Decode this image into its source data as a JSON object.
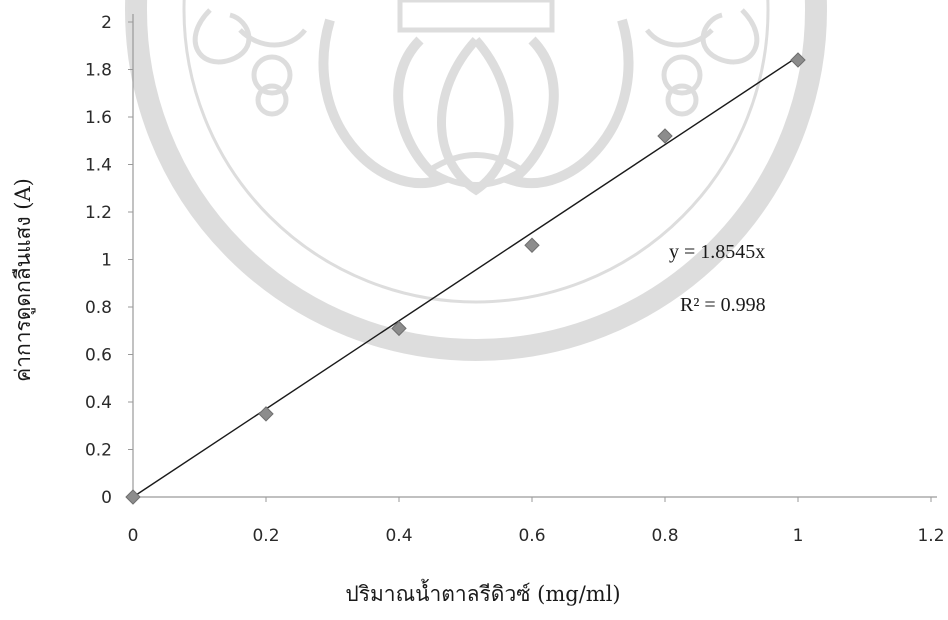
{
  "chart_data": {
    "type": "scatter",
    "title": "",
    "xlabel": "ปริมาณน้ำตาลรีดิวซ์ (mg/ml)",
    "ylabel": "ค่าการดูดกลืนแสง (A)",
    "xlim": [
      0,
      1.2
    ],
    "ylim": [
      0,
      2
    ],
    "x_ticks": [
      "0",
      "0.2",
      "0.4",
      "0.6",
      "0.8",
      "1",
      "1.2"
    ],
    "y_ticks": [
      "0",
      "0.2",
      "0.4",
      "0.6",
      "0.8",
      "1",
      "1.2",
      "1.4",
      "1.6",
      "1.8",
      "2"
    ],
    "grid": false,
    "legend": "none",
    "series": [
      {
        "points": [
          {
            "x": 0,
            "y": 0
          },
          {
            "x": 0.2,
            "y": 0.35
          },
          {
            "x": 0.4,
            "y": 0.71
          },
          {
            "x": 0.6,
            "y": 1.06
          },
          {
            "x": 0.8,
            "y": 1.52
          },
          {
            "x": 1.0,
            "y": 1.84
          }
        ],
        "marker": "diamond",
        "color": "#8c8c8c"
      }
    ],
    "trendline": {
      "type": "linear",
      "slope": 1.8545,
      "intercept": 0,
      "x_range": [
        0,
        1.0
      ],
      "color": "#1a1a1a",
      "equation": "y = 1.8545x",
      "r_squared": "R² = 0.998"
    }
  }
}
